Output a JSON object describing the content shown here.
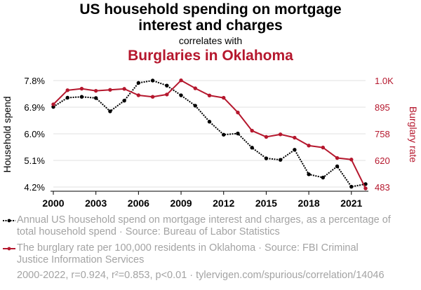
{
  "chart_data": {
    "type": "line",
    "title_line1": "US household spending on mortgage",
    "title_line2": "interest and charges",
    "subtitle": "correlates with",
    "title2": "Burglaries in Oklahoma",
    "ylabel_left": "Household spend",
    "ylabel_right": "Burglary rate",
    "x": [
      2000,
      2001,
      2002,
      2003,
      2004,
      2005,
      2006,
      2007,
      2008,
      2009,
      2010,
      2011,
      2012,
      2013,
      2014,
      2015,
      2016,
      2017,
      2018,
      2019,
      2020,
      2021,
      2022
    ],
    "x_ticks": [
      "2000",
      "2003",
      "2006",
      "2009",
      "2012",
      "2015",
      "2018",
      "2021"
    ],
    "left_ticks": [
      "4.2%",
      "5.1%",
      "6.0%",
      "6.9%",
      "7.8%"
    ],
    "left_tick_values": [
      4.2,
      5.1,
      6.0,
      6.9,
      7.8
    ],
    "right_ticks": [
      "483",
      "620",
      "758",
      "895",
      "1.0K"
    ],
    "right_tick_values": [
      483,
      620,
      758,
      895,
      1033
    ],
    "left_ylim": [
      4.2,
      7.8
    ],
    "right_ylim": [
      483,
      1033
    ],
    "series": [
      {
        "axis": "left",
        "color": "#000000",
        "style": "dotted",
        "values": [
          6.91,
          7.22,
          7.25,
          7.21,
          6.76,
          7.12,
          7.72,
          7.8,
          7.63,
          7.3,
          6.95,
          6.41,
          5.97,
          6.01,
          5.53,
          5.17,
          5.12,
          5.46,
          4.63,
          4.52,
          4.9,
          4.21,
          4.3
        ]
      },
      {
        "axis": "right",
        "color": "#b5172d",
        "style": "solid",
        "values": [
          910,
          983,
          991,
          980,
          985,
          990,
          957,
          949,
          961,
          1034,
          993,
          956,
          944,
          868,
          774,
          742,
          755,
          738,
          697,
          687,
          633,
          625,
          476
        ]
      }
    ],
    "grid": "horizontal",
    "legend": [
      {
        "marker_color": "#000000",
        "style": "dotted",
        "line1": "Annual US household spend on mortgage interest and charges, as a percentage of",
        "line2": "total household spend · Source: Bureau of Labor Statistics"
      },
      {
        "marker_color": "#b5172d",
        "style": "solid",
        "line1": "The burglary rate per 100,000 residents in Oklahoma · Source: FBI Criminal",
        "line2": "Justice Information Services"
      }
    ],
    "footer": "2000-2022, r=0.924, r²=0.853, p<0.01 · tylervigen.com/spurious/correlation/14046"
  }
}
